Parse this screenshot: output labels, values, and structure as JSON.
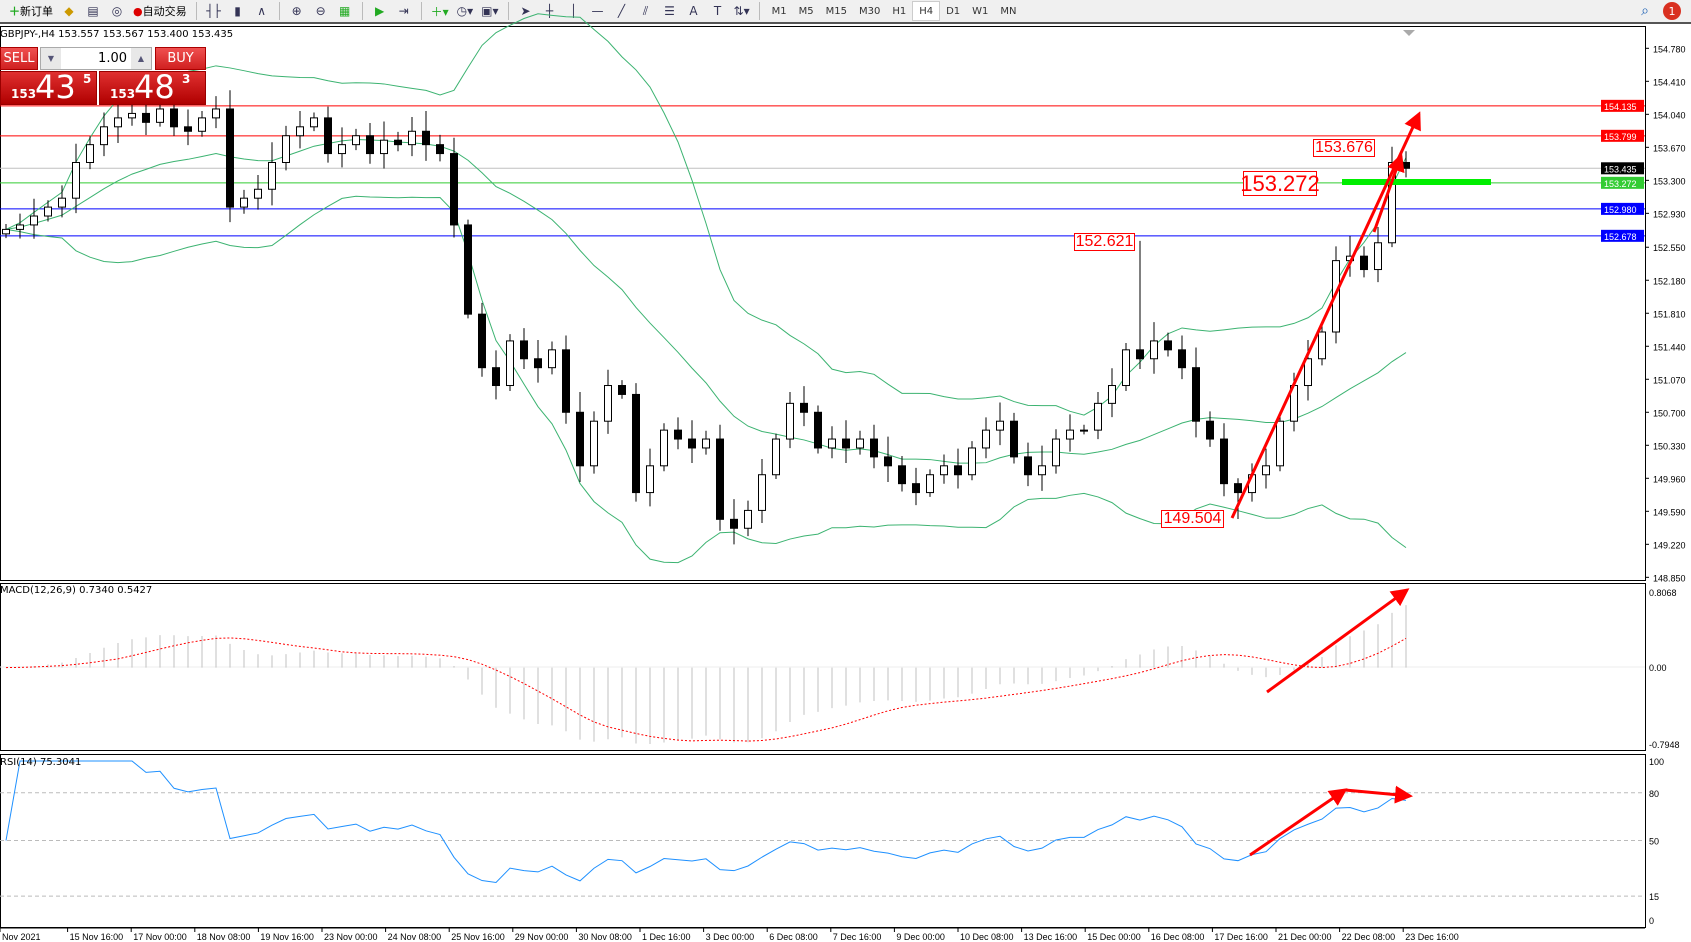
{
  "toolbar": {
    "new_order": "新订单",
    "auto_trading": "自动交易",
    "timeframes": [
      "M1",
      "M5",
      "M15",
      "M30",
      "H1",
      "H4",
      "D1",
      "W1",
      "MN"
    ],
    "active_timeframe": "H4",
    "notification_count": "1"
  },
  "trade_panel": {
    "sell_label": "SELL",
    "buy_label": "BUY",
    "volume": "1.00",
    "sell_price": {
      "small": "153",
      "big": "43",
      "pip": "5"
    },
    "buy_price": {
      "small": "153",
      "big": "48",
      "pip": "3"
    }
  },
  "chart_data": [
    {
      "type": "candlestick",
      "title": "GBPJPY-,H4  153.557 153.567 153.400 153.435",
      "ylim": [
        148.82,
        155.03
      ],
      "y_ticks": [
        "154.780",
        "154.410",
        "154.040",
        "153.670",
        "153.300",
        "152.930",
        "152.550",
        "152.180",
        "151.810",
        "151.440",
        "151.070",
        "150.700",
        "150.330",
        "149.960",
        "149.590",
        "149.220",
        "148.850"
      ],
      "x_ticks": [
        "Nov 2021",
        "15 Nov 16:00",
        "17 Nov 00:00",
        "18 Nov 08:00",
        "19 Nov 16:00",
        "23 Nov 00:00",
        "24 Nov 08:00",
        "25 Nov 16:00",
        "29 Nov 00:00",
        "30 Nov 08:00",
        "1 Dec 16:00",
        "3 Dec 00:00",
        "6 Dec 08:00",
        "7 Dec 16:00",
        "9 Dec 00:00",
        "10 Dec 08:00",
        "13 Dec 16:00",
        "15 Dec 00:00",
        "16 Dec 08:00",
        "17 Dec 16:00",
        "21 Dec 00:00",
        "22 Dec 08:00",
        "23 Dec 16:00"
      ],
      "closes": [
        152.75,
        152.8,
        152.9,
        153.0,
        153.1,
        153.5,
        153.7,
        153.9,
        154.0,
        154.05,
        153.95,
        154.1,
        153.9,
        153.85,
        154.0,
        154.1,
        153.0,
        153.1,
        153.2,
        153.5,
        153.8,
        153.9,
        154.0,
        153.6,
        153.7,
        153.8,
        153.6,
        153.75,
        153.7,
        153.85,
        153.7,
        153.6,
        152.8,
        151.8,
        151.2,
        151.0,
        151.5,
        151.3,
        151.2,
        151.4,
        150.7,
        150.1,
        150.6,
        151.0,
        150.9,
        149.8,
        150.1,
        150.5,
        150.4,
        150.3,
        150.4,
        149.5,
        149.4,
        149.6,
        150.0,
        150.4,
        150.8,
        150.7,
        150.3,
        150.4,
        150.3,
        150.4,
        150.2,
        150.1,
        149.9,
        149.8,
        150.0,
        150.1,
        150.0,
        150.3,
        150.5,
        150.6,
        150.2,
        150.0,
        150.1,
        150.4,
        150.5,
        150.5,
        150.8,
        151.0,
        151.4,
        151.3,
        151.5,
        151.4,
        151.2,
        150.6,
        150.4,
        149.9,
        149.8,
        150.0,
        150.1,
        150.6,
        151.0,
        151.3,
        151.6,
        152.4,
        152.45,
        152.3,
        152.6,
        153.5,
        153.435
      ],
      "indicator": "Bollinger Bands (20, 2)",
      "horizontal_lines": [
        {
          "price": 154.135,
          "label": "154.135",
          "color": "#ff0000"
        },
        {
          "price": 153.799,
          "label": "153.799",
          "color": "#ff0000"
        },
        {
          "price": 153.435,
          "label": "153.435",
          "color": "#000000",
          "line_color": "#c0c0c0"
        },
        {
          "price": 153.272,
          "label": "153.272",
          "color": "#33cc33"
        },
        {
          "price": 152.98,
          "label": "152.980",
          "color": "#0000ff"
        },
        {
          "price": 152.678,
          "label": "152.678",
          "color": "#0000ff"
        }
      ],
      "price_labels": [
        "153.676",
        "153.272",
        "152.621",
        "149.504"
      ],
      "band_color": "#3cb371"
    },
    {
      "type": "bar+line",
      "title": "MACD(12,26,9) 0.7340 0.5427",
      "ylim": [
        -0.7948,
        0.8068
      ],
      "y_ticks": [
        "0.8068",
        "0.00",
        "-0.7948"
      ],
      "histogram_color": "#c0c0c0",
      "signal_color": "#ff0000"
    },
    {
      "type": "line",
      "title": "RSI(14) 75.3041",
      "ylim": [
        0,
        100
      ],
      "y_ticks": [
        "100",
        "80",
        "50",
        "15",
        "0"
      ],
      "levels": [
        80,
        50,
        15
      ],
      "color": "#1e90ff"
    }
  ]
}
